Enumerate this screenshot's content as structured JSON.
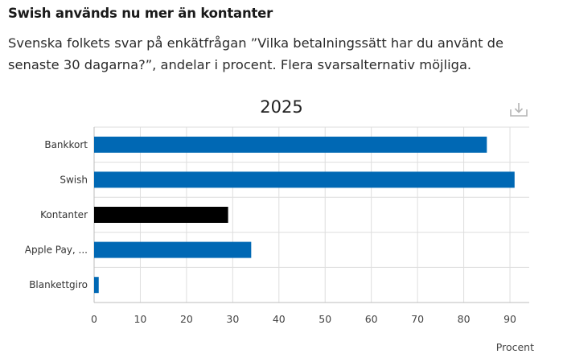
{
  "header": {
    "title": "Swish används nu mer än kontanter",
    "subtitle": "Svenska folkets svar på enkätfrågan ”Vilka betalningssätt har du använt de senaste 30 dagarna?”, andelar i procent. Flera svarsalternativ möjliga."
  },
  "toolbar": {
    "download_icon": "download-icon"
  },
  "chart_data": {
    "type": "bar",
    "orientation": "horizontal",
    "title": "2025",
    "categories": [
      "Bankkort",
      "Swish",
      "Kontanter",
      "Apple Pay, ...",
      "Blankettgiro"
    ],
    "values": [
      85,
      91,
      29,
      34,
      1
    ],
    "colors": [
      "#0068b4",
      "#0068b4",
      "#000000",
      "#0068b4",
      "#0068b4"
    ],
    "xlabel": "Procent",
    "ylabel": "",
    "xlim": [
      0,
      95
    ],
    "xticks": [
      0,
      10,
      20,
      30,
      40,
      50,
      60,
      70,
      80,
      90
    ],
    "grid": true,
    "legend": "none"
  }
}
